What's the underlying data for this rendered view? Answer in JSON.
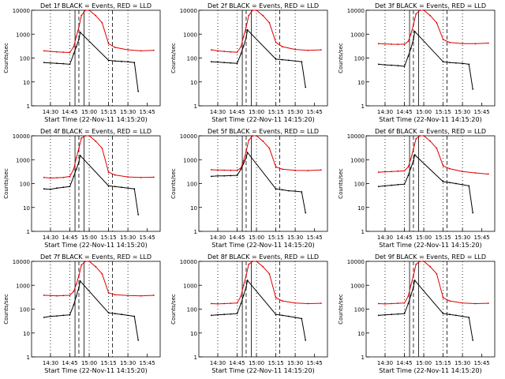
{
  "figure": {
    "background": "#ffffff"
  },
  "style": {
    "events_color": "#000000",
    "lld_color": "#e00000"
  },
  "chart_data": [
    {
      "type": "line",
      "title": "Det 1f BLACK = Events, RED = LLD",
      "xlabel": "Start Time (22-Nov-11 14:15:20)",
      "ylabel": "Counts/sec",
      "y_scale": "log",
      "ylim": [
        1,
        10000
      ],
      "yticks": [
        "1",
        "10",
        "100",
        "1000",
        "10000"
      ],
      "xticks": [
        "14:30",
        "14:45",
        "15:00",
        "15:15",
        "15:30",
        "15:45"
      ],
      "series": [
        {
          "name": "Events",
          "color": "#000000",
          "x": [
            "14:25",
            "14:30",
            "14:35",
            "14:40",
            "14:45",
            "14:48",
            "14:50",
            "14:52",
            "14:53",
            "15:15",
            "15:20",
            "15:25",
            "15:30",
            "15:35",
            "15:38"
          ],
          "y": [
            65,
            62,
            60,
            58,
            55,
            150,
            300,
            600,
            1200,
            80,
            75,
            72,
            70,
            65,
            4
          ]
        },
        {
          "name": "LLD",
          "color": "#e00000",
          "x": [
            "14:25",
            "14:30",
            "14:35",
            "14:40",
            "14:45",
            "14:48",
            "14:50",
            "14:52",
            "14:54",
            "14:57",
            "15:00",
            "15:05",
            "15:10",
            "15:15",
            "15:20",
            "15:30",
            "15:40",
            "15:50"
          ],
          "y": [
            200,
            190,
            180,
            175,
            170,
            300,
            800,
            2000,
            6000,
            10000,
            10000,
            6000,
            3000,
            400,
            280,
            220,
            200,
            210
          ]
        }
      ]
    },
    {
      "type": "line",
      "title": "Det 2f BLACK = Events, RED = LLD",
      "xlabel": "Start Time (22-Nov-11 14:15:20)",
      "ylabel": "Counts/sec",
      "y_scale": "log",
      "ylim": [
        1,
        10000
      ],
      "yticks": [
        "1",
        "10",
        "100",
        "1000",
        "10000"
      ],
      "xticks": [
        "14:30",
        "14:45",
        "15:00",
        "15:15",
        "15:30",
        "15:45"
      ],
      "series": [
        {
          "name": "Events",
          "color": "#000000",
          "x": [
            "14:25",
            "14:30",
            "14:35",
            "14:40",
            "14:45",
            "14:48",
            "14:50",
            "14:52",
            "14:53",
            "15:15",
            "15:20",
            "15:25",
            "15:30",
            "15:35",
            "15:38"
          ],
          "y": [
            70,
            68,
            65,
            62,
            60,
            150,
            320,
            700,
            1500,
            90,
            85,
            80,
            75,
            70,
            6
          ]
        },
        {
          "name": "LLD",
          "color": "#e00000",
          "x": [
            "14:25",
            "14:30",
            "14:35",
            "14:40",
            "14:45",
            "14:48",
            "14:50",
            "14:52",
            "14:54",
            "14:57",
            "15:00",
            "15:05",
            "15:10",
            "15:15",
            "15:20",
            "15:30",
            "15:40",
            "15:50"
          ],
          "y": [
            220,
            200,
            190,
            180,
            175,
            300,
            800,
            2000,
            6000,
            10000,
            10000,
            6000,
            3000,
            450,
            300,
            230,
            210,
            220
          ]
        }
      ]
    },
    {
      "type": "line",
      "title": "Det 3f BLACK = Events, RED = LLD",
      "xlabel": "Start Time (22-Nov-11 14:15:20)",
      "ylabel": "Counts/sec",
      "y_scale": "log",
      "ylim": [
        1,
        10000
      ],
      "yticks": [
        "1",
        "10",
        "100",
        "1000",
        "10000"
      ],
      "xticks": [
        "14:30",
        "14:45",
        "15:00",
        "15:15",
        "15:30",
        "15:45"
      ],
      "series": [
        {
          "name": "Events",
          "color": "#000000",
          "x": [
            "14:25",
            "14:30",
            "14:35",
            "14:40",
            "14:45",
            "14:48",
            "14:50",
            "14:52",
            "14:53",
            "15:15",
            "15:20",
            "15:25",
            "15:30",
            "15:35",
            "15:38"
          ],
          "y": [
            55,
            52,
            50,
            48,
            45,
            120,
            250,
            600,
            1300,
            70,
            65,
            62,
            60,
            55,
            5
          ]
        },
        {
          "name": "LLD",
          "color": "#e00000",
          "x": [
            "14:25",
            "14:30",
            "14:35",
            "14:40",
            "14:45",
            "14:48",
            "14:50",
            "14:52",
            "14:54",
            "14:57",
            "15:00",
            "15:05",
            "15:10",
            "15:15",
            "15:20",
            "15:30",
            "15:40",
            "15:50"
          ],
          "y": [
            400,
            390,
            380,
            375,
            380,
            500,
            1000,
            2500,
            7000,
            10000,
            10000,
            6000,
            3000,
            600,
            450,
            400,
            400,
            420
          ]
        }
      ]
    },
    {
      "type": "line",
      "title": "Det 4f BLACK = Events, RED = LLD",
      "xlabel": "Start Time (22-Nov-11 14:15:20)",
      "ylabel": "Counts/sec",
      "y_scale": "log",
      "ylim": [
        1,
        10000
      ],
      "yticks": [
        "1",
        "10",
        "100",
        "1000",
        "10000"
      ],
      "xticks": [
        "14:30",
        "14:45",
        "15:00",
        "15:15",
        "15:30",
        "15:45"
      ],
      "series": [
        {
          "name": "Events",
          "color": "#000000",
          "x": [
            "14:25",
            "14:30",
            "14:35",
            "14:40",
            "14:45",
            "14:48",
            "14:50",
            "14:52",
            "14:53",
            "15:15",
            "15:20",
            "15:25",
            "15:30",
            "15:35",
            "15:38"
          ],
          "y": [
            60,
            58,
            65,
            70,
            75,
            200,
            400,
            800,
            1500,
            80,
            75,
            70,
            65,
            60,
            5
          ]
        },
        {
          "name": "LLD",
          "color": "#e00000",
          "x": [
            "14:25",
            "14:30",
            "14:35",
            "14:40",
            "14:45",
            "14:48",
            "14:50",
            "14:52",
            "14:54",
            "14:57",
            "15:00",
            "15:05",
            "15:10",
            "15:15",
            "15:20",
            "15:30",
            "15:40",
            "15:50"
          ],
          "y": [
            180,
            170,
            175,
            180,
            200,
            400,
            1200,
            3000,
            8000,
            10000,
            10000,
            6000,
            3000,
            300,
            230,
            190,
            180,
            185
          ]
        }
      ]
    },
    {
      "type": "line",
      "title": "Det 5f BLACK = Events, RED = LLD",
      "xlabel": "Start Time (22-Nov-11 14:15:20)",
      "ylabel": "Counts/sec",
      "y_scale": "log",
      "ylim": [
        1,
        10000
      ],
      "yticks": [
        "1",
        "10",
        "100",
        "1000",
        "10000"
      ],
      "xticks": [
        "14:30",
        "14:45",
        "15:00",
        "15:15",
        "15:30",
        "15:45"
      ],
      "series": [
        {
          "name": "Events",
          "color": "#000000",
          "x": [
            "14:25",
            "14:30",
            "14:35",
            "14:40",
            "14:45",
            "14:48",
            "14:50",
            "14:52",
            "14:53",
            "15:15",
            "15:20",
            "15:25",
            "15:30",
            "15:35",
            "15:38"
          ],
          "y": [
            200,
            210,
            210,
            215,
            220,
            400,
            700,
            1200,
            2000,
            60,
            55,
            50,
            48,
            45,
            6
          ]
        },
        {
          "name": "LLD",
          "color": "#e00000",
          "x": [
            "14:25",
            "14:30",
            "14:35",
            "14:40",
            "14:45",
            "14:48",
            "14:50",
            "14:52",
            "14:54",
            "14:57",
            "15:00",
            "15:05",
            "15:10",
            "15:15",
            "15:20",
            "15:30",
            "15:40",
            "15:50"
          ],
          "y": [
            380,
            370,
            365,
            360,
            360,
            450,
            900,
            2200,
            6500,
            10000,
            10000,
            6000,
            3000,
            500,
            400,
            360,
            350,
            370
          ]
        }
      ]
    },
    {
      "type": "line",
      "title": "Det 6f BLACK = Events, RED = LLD",
      "xlabel": "Start Time (22-Nov-11 14:15:20)",
      "ylabel": "Counts/sec",
      "y_scale": "log",
      "ylim": [
        1,
        10000
      ],
      "yticks": [
        "1",
        "10",
        "100",
        "1000",
        "10000"
      ],
      "xticks": [
        "14:30",
        "14:45",
        "15:00",
        "15:15",
        "15:30",
        "15:45"
      ],
      "series": [
        {
          "name": "Events",
          "color": "#000000",
          "x": [
            "14:25",
            "14:30",
            "14:35",
            "14:40",
            "14:45",
            "14:48",
            "14:50",
            "14:52",
            "14:53",
            "15:15",
            "15:20",
            "15:25",
            "15:30",
            "15:35",
            "15:38"
          ],
          "y": [
            75,
            80,
            85,
            90,
            95,
            220,
            450,
            900,
            1600,
            120,
            110,
            100,
            90,
            80,
            6
          ]
        },
        {
          "name": "LLD",
          "color": "#e00000",
          "x": [
            "14:25",
            "14:30",
            "14:35",
            "14:40",
            "14:45",
            "14:48",
            "14:50",
            "14:52",
            "14:54",
            "14:57",
            "15:00",
            "15:05",
            "15:10",
            "15:15",
            "15:20",
            "15:30",
            "15:40",
            "15:50"
          ],
          "y": [
            300,
            310,
            320,
            330,
            340,
            500,
            1100,
            2800,
            7500,
            10000,
            10000,
            6000,
            3000,
            550,
            420,
            320,
            280,
            250
          ]
        }
      ]
    },
    {
      "type": "line",
      "title": "Det 7f BLACK = Events, RED = LLD",
      "xlabel": "Start Time (22-Nov-11 14:15:20)",
      "ylabel": "Counts/sec",
      "y_scale": "log",
      "ylim": [
        1,
        10000
      ],
      "yticks": [
        "1",
        "10",
        "100",
        "1000",
        "10000"
      ],
      "xticks": [
        "14:30",
        "14:45",
        "15:00",
        "15:15",
        "15:30",
        "15:45"
      ],
      "series": [
        {
          "name": "Events",
          "color": "#000000",
          "x": [
            "14:25",
            "14:30",
            "14:35",
            "14:40",
            "14:45",
            "14:48",
            "14:50",
            "14:52",
            "14:53",
            "15:15",
            "15:20",
            "15:25",
            "15:30",
            "15:35",
            "15:38"
          ],
          "y": [
            45,
            50,
            52,
            55,
            58,
            150,
            350,
            800,
            1500,
            70,
            65,
            60,
            55,
            50,
            5
          ]
        },
        {
          "name": "LLD",
          "color": "#e00000",
          "x": [
            "14:25",
            "14:30",
            "14:35",
            "14:40",
            "14:45",
            "14:48",
            "14:50",
            "14:52",
            "14:54",
            "14:57",
            "15:00",
            "15:05",
            "15:10",
            "15:15",
            "15:20",
            "15:30",
            "15:40",
            "15:50"
          ],
          "y": [
            380,
            370,
            360,
            370,
            380,
            550,
            1100,
            2500,
            7000,
            10000,
            10000,
            6000,
            3000,
            480,
            400,
            370,
            360,
            380
          ]
        }
      ]
    },
    {
      "type": "line",
      "title": "Det 8f BLACK = Events, RED = LLD",
      "xlabel": "Start Time (22-Nov-11 14:15:20)",
      "ylabel": "Counts/sec",
      "y_scale": "log",
      "ylim": [
        1,
        10000
      ],
      "yticks": [
        "1",
        "10",
        "100",
        "1000",
        "10000"
      ],
      "xticks": [
        "14:30",
        "14:45",
        "15:00",
        "15:15",
        "15:30",
        "15:45"
      ],
      "series": [
        {
          "name": "Events",
          "color": "#000000",
          "x": [
            "14:25",
            "14:30",
            "14:35",
            "14:40",
            "14:45",
            "14:48",
            "14:50",
            "14:52",
            "14:53",
            "15:15",
            "15:20",
            "15:25",
            "15:30",
            "15:35",
            "15:38"
          ],
          "y": [
            55,
            58,
            60,
            62,
            65,
            170,
            380,
            850,
            1600,
            60,
            55,
            50,
            45,
            40,
            5
          ]
        },
        {
          "name": "LLD",
          "color": "#e00000",
          "x": [
            "14:25",
            "14:30",
            "14:35",
            "14:40",
            "14:45",
            "14:48",
            "14:50",
            "14:52",
            "14:54",
            "14:57",
            "15:00",
            "15:05",
            "15:10",
            "15:15",
            "15:20",
            "15:30",
            "15:40",
            "15:50"
          ],
          "y": [
            170,
            165,
            170,
            175,
            180,
            350,
            1000,
            2600,
            7500,
            10000,
            10000,
            6000,
            3000,
            300,
            220,
            180,
            170,
            175
          ]
        }
      ]
    },
    {
      "type": "line",
      "title": "Det 9f BLACK = Events, RED = LLD",
      "xlabel": "Start Time (22-Nov-11 14:15:20)",
      "ylabel": "Counts/sec",
      "y_scale": "log",
      "ylim": [
        1,
        10000
      ],
      "yticks": [
        "1",
        "10",
        "100",
        "1000",
        "10000"
      ],
      "xticks": [
        "14:30",
        "14:45",
        "15:00",
        "15:15",
        "15:30",
        "15:45"
      ],
      "series": [
        {
          "name": "Events",
          "color": "#000000",
          "x": [
            "14:25",
            "14:30",
            "14:35",
            "14:40",
            "14:45",
            "14:48",
            "14:50",
            "14:52",
            "14:53",
            "15:15",
            "15:20",
            "15:25",
            "15:30",
            "15:35",
            "15:38"
          ],
          "y": [
            55,
            58,
            60,
            62,
            65,
            170,
            380,
            850,
            1600,
            65,
            60,
            55,
            50,
            45,
            5
          ]
        },
        {
          "name": "LLD",
          "color": "#e00000",
          "x": [
            "14:25",
            "14:30",
            "14:35",
            "14:40",
            "14:45",
            "14:48",
            "14:50",
            "14:52",
            "14:54",
            "14:57",
            "15:00",
            "15:05",
            "15:10",
            "15:15",
            "15:20",
            "15:30",
            "15:40",
            "15:50"
          ],
          "y": [
            170,
            165,
            170,
            175,
            180,
            350,
            1000,
            2600,
            7500,
            10000,
            10000,
            6000,
            3000,
            300,
            220,
            180,
            170,
            175
          ]
        }
      ]
    }
  ]
}
